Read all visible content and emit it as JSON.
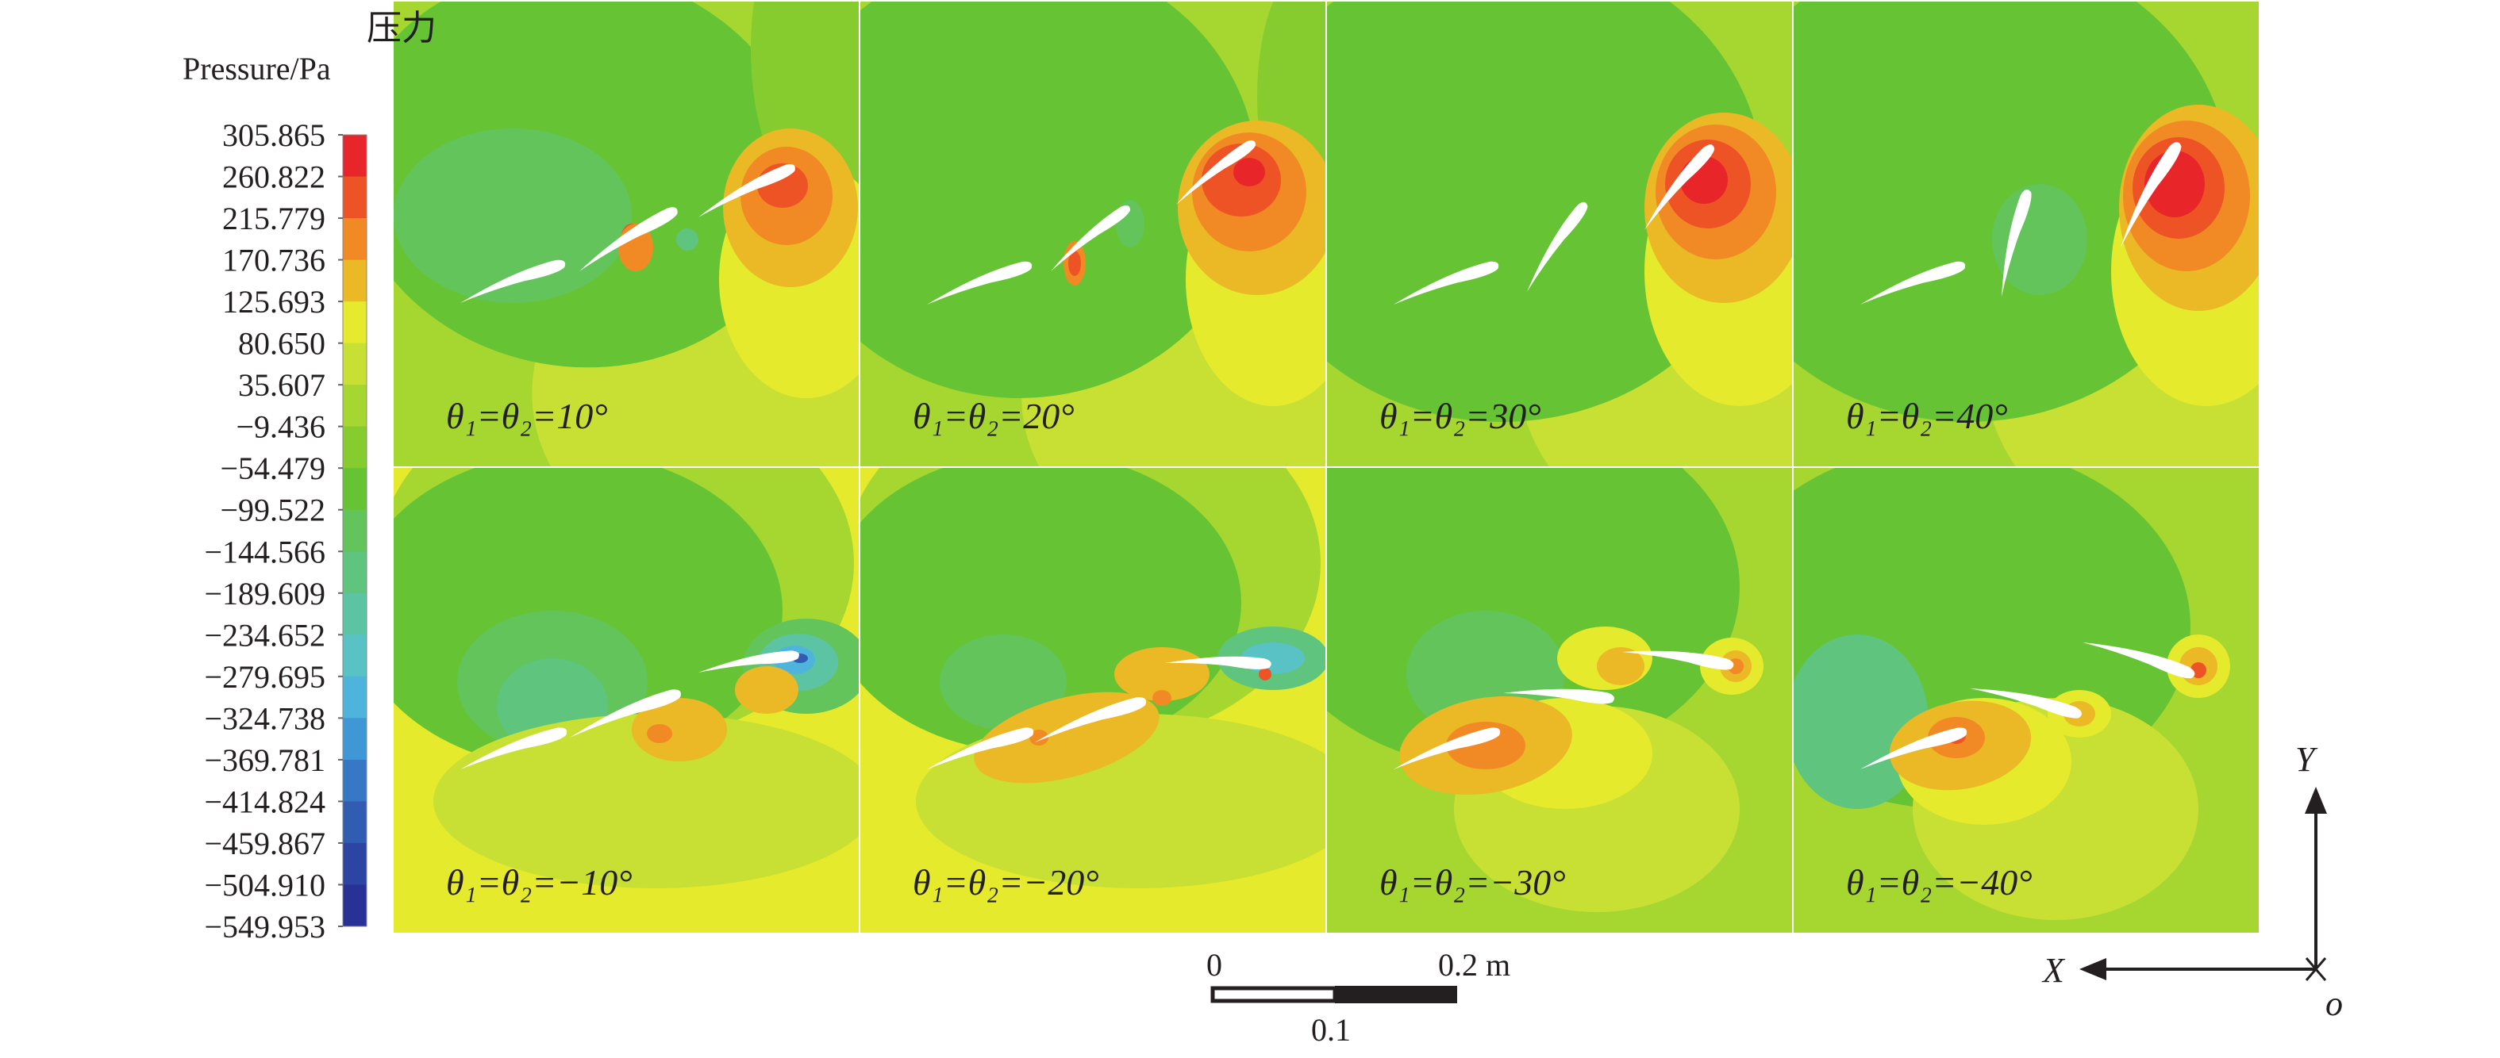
{
  "legend": {
    "title_cn": "压力",
    "title_en": "Pressure/Pa",
    "levels": [
      "305.865",
      "260.822",
      "215.779",
      "170.736",
      "125.693",
      "80.650",
      "35.607",
      "−9.436",
      "−54.479",
      "−99.522",
      "−144.566",
      "−189.609",
      "−234.652",
      "−279.695",
      "−324.738",
      "−369.781",
      "−414.824",
      "−459.867",
      "−504.910",
      "−549.953"
    ],
    "band_colors": [
      "#e8262a",
      "#ee5326",
      "#f18a24",
      "#ebb826",
      "#e6ea2c",
      "#c7e033",
      "#a6d630",
      "#86cc2e",
      "#66c434",
      "#62c45a",
      "#5ec47e",
      "#5cc4a2",
      "#58c2c4",
      "#4eb4dc",
      "#3f97d6",
      "#3678c4",
      "#305cb2",
      "#2c44a2",
      "#283296"
    ]
  },
  "panels": [
    {
      "label": "θ₁=θ₂=10°"
    },
    {
      "label": "θ₁=θ₂=20°"
    },
    {
      "label": "θ₁=θ₂=30°"
    },
    {
      "label": "θ₁=θ₂=40°"
    },
    {
      "label": "θ₁=θ₂=−10°"
    },
    {
      "label": "θ₁=θ₂=−20°"
    },
    {
      "label": "θ₁=θ₂=−30°"
    },
    {
      "label": "θ₁=θ₂=−40°"
    }
  ],
  "scale_bar": {
    "start": "0",
    "mid": "0.1",
    "end": "0.2 m"
  },
  "axes": {
    "y": "Y",
    "x": "X",
    "origin": "o"
  }
}
